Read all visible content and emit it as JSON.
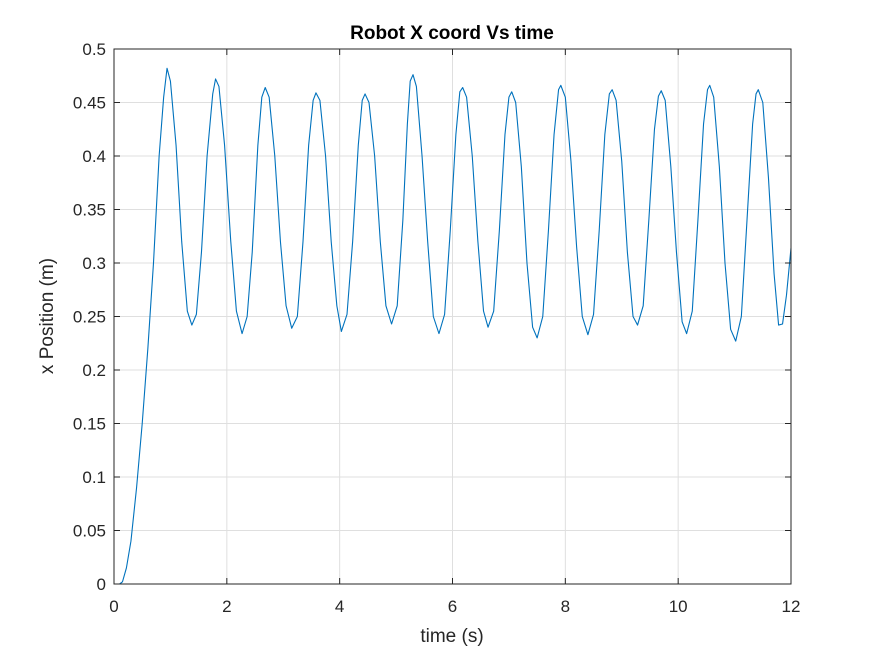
{
  "chart_data": {
    "type": "line",
    "title": "Robot X coord Vs time",
    "xlabel": "time (s)",
    "ylabel": "x Position (m)",
    "xlim": [
      0,
      12
    ],
    "ylim": [
      0,
      0.5
    ],
    "grid": true,
    "legend": "none",
    "x_ticks": [
      {
        "value": 0,
        "label": "0"
      },
      {
        "value": 2,
        "label": "2"
      },
      {
        "value": 4,
        "label": "4"
      },
      {
        "value": 6,
        "label": "6"
      },
      {
        "value": 8,
        "label": "8"
      },
      {
        "value": 10,
        "label": "10"
      },
      {
        "value": 12,
        "label": "12"
      }
    ],
    "y_ticks": [
      {
        "value": 0,
        "label": "0"
      },
      {
        "value": 0.05,
        "label": "0.05"
      },
      {
        "value": 0.1,
        "label": "0.1"
      },
      {
        "value": 0.15,
        "label": "0.15"
      },
      {
        "value": 0.2,
        "label": "0.2"
      },
      {
        "value": 0.25,
        "label": "0.25"
      },
      {
        "value": 0.3,
        "label": "0.3"
      },
      {
        "value": 0.35,
        "label": "0.35"
      },
      {
        "value": 0.4,
        "label": "0.4"
      },
      {
        "value": 0.45,
        "label": "0.45"
      },
      {
        "value": 0.5,
        "label": "0.5"
      }
    ],
    "series": [
      {
        "color": "#0072BD",
        "points": [
          [
            0.0,
            0.0
          ],
          [
            0.1,
            0.0
          ],
          [
            0.15,
            0.002
          ],
          [
            0.22,
            0.015
          ],
          [
            0.3,
            0.04
          ],
          [
            0.4,
            0.09
          ],
          [
            0.5,
            0.15
          ],
          [
            0.6,
            0.22
          ],
          [
            0.7,
            0.3
          ],
          [
            0.8,
            0.4
          ],
          [
            0.88,
            0.455
          ],
          [
            0.94,
            0.482
          ],
          [
            1.0,
            0.47
          ],
          [
            1.1,
            0.41
          ],
          [
            1.2,
            0.32
          ],
          [
            1.3,
            0.255
          ],
          [
            1.38,
            0.242
          ],
          [
            1.46,
            0.252
          ],
          [
            1.55,
            0.31
          ],
          [
            1.65,
            0.4
          ],
          [
            1.75,
            0.458
          ],
          [
            1.8,
            0.472
          ],
          [
            1.86,
            0.465
          ],
          [
            1.96,
            0.41
          ],
          [
            2.07,
            0.32
          ],
          [
            2.17,
            0.255
          ],
          [
            2.27,
            0.234
          ],
          [
            2.36,
            0.25
          ],
          [
            2.45,
            0.31
          ],
          [
            2.55,
            0.41
          ],
          [
            2.62,
            0.455
          ],
          [
            2.68,
            0.464
          ],
          [
            2.75,
            0.455
          ],
          [
            2.85,
            0.4
          ],
          [
            2.95,
            0.32
          ],
          [
            3.05,
            0.26
          ],
          [
            3.15,
            0.239
          ],
          [
            3.25,
            0.25
          ],
          [
            3.35,
            0.32
          ],
          [
            3.45,
            0.41
          ],
          [
            3.53,
            0.452
          ],
          [
            3.58,
            0.459
          ],
          [
            3.65,
            0.452
          ],
          [
            3.75,
            0.4
          ],
          [
            3.85,
            0.32
          ],
          [
            3.95,
            0.26
          ],
          [
            4.03,
            0.236
          ],
          [
            4.13,
            0.252
          ],
          [
            4.23,
            0.32
          ],
          [
            4.33,
            0.41
          ],
          [
            4.4,
            0.452
          ],
          [
            4.45,
            0.458
          ],
          [
            4.52,
            0.45
          ],
          [
            4.62,
            0.4
          ],
          [
            4.72,
            0.32
          ],
          [
            4.82,
            0.26
          ],
          [
            4.92,
            0.243
          ],
          [
            5.02,
            0.26
          ],
          [
            5.12,
            0.34
          ],
          [
            5.2,
            0.43
          ],
          [
            5.25,
            0.47
          ],
          [
            5.3,
            0.476
          ],
          [
            5.36,
            0.465
          ],
          [
            5.46,
            0.4
          ],
          [
            5.56,
            0.32
          ],
          [
            5.66,
            0.25
          ],
          [
            5.76,
            0.234
          ],
          [
            5.86,
            0.252
          ],
          [
            5.96,
            0.33
          ],
          [
            6.06,
            0.42
          ],
          [
            6.13,
            0.46
          ],
          [
            6.18,
            0.464
          ],
          [
            6.25,
            0.455
          ],
          [
            6.35,
            0.4
          ],
          [
            6.45,
            0.32
          ],
          [
            6.55,
            0.255
          ],
          [
            6.63,
            0.24
          ],
          [
            6.73,
            0.255
          ],
          [
            6.83,
            0.33
          ],
          [
            6.93,
            0.42
          ],
          [
            7.0,
            0.455
          ],
          [
            7.05,
            0.46
          ],
          [
            7.12,
            0.45
          ],
          [
            7.22,
            0.39
          ],
          [
            7.32,
            0.3
          ],
          [
            7.42,
            0.24
          ],
          [
            7.5,
            0.23
          ],
          [
            7.6,
            0.25
          ],
          [
            7.7,
            0.33
          ],
          [
            7.8,
            0.42
          ],
          [
            7.88,
            0.462
          ],
          [
            7.92,
            0.466
          ],
          [
            8.0,
            0.455
          ],
          [
            8.1,
            0.395
          ],
          [
            8.2,
            0.315
          ],
          [
            8.3,
            0.25
          ],
          [
            8.4,
            0.233
          ],
          [
            8.5,
            0.252
          ],
          [
            8.6,
            0.33
          ],
          [
            8.7,
            0.42
          ],
          [
            8.78,
            0.458
          ],
          [
            8.83,
            0.462
          ],
          [
            8.9,
            0.452
          ],
          [
            9.0,
            0.395
          ],
          [
            9.1,
            0.31
          ],
          [
            9.2,
            0.25
          ],
          [
            9.28,
            0.242
          ],
          [
            9.38,
            0.26
          ],
          [
            9.48,
            0.34
          ],
          [
            9.58,
            0.425
          ],
          [
            9.65,
            0.456
          ],
          [
            9.7,
            0.461
          ],
          [
            9.77,
            0.452
          ],
          [
            9.87,
            0.39
          ],
          [
            9.97,
            0.31
          ],
          [
            10.07,
            0.245
          ],
          [
            10.15,
            0.234
          ],
          [
            10.25,
            0.255
          ],
          [
            10.35,
            0.34
          ],
          [
            10.45,
            0.43
          ],
          [
            10.52,
            0.462
          ],
          [
            10.56,
            0.466
          ],
          [
            10.63,
            0.455
          ],
          [
            10.73,
            0.39
          ],
          [
            10.83,
            0.3
          ],
          [
            10.93,
            0.238
          ],
          [
            11.02,
            0.227
          ],
          [
            11.12,
            0.25
          ],
          [
            11.22,
            0.34
          ],
          [
            11.32,
            0.43
          ],
          [
            11.38,
            0.458
          ],
          [
            11.42,
            0.462
          ],
          [
            11.5,
            0.45
          ],
          [
            11.6,
            0.38
          ],
          [
            11.7,
            0.29
          ],
          [
            11.78,
            0.242
          ],
          [
            11.85,
            0.243
          ],
          [
            11.92,
            0.27
          ],
          [
            12.0,
            0.314
          ]
        ]
      }
    ]
  }
}
